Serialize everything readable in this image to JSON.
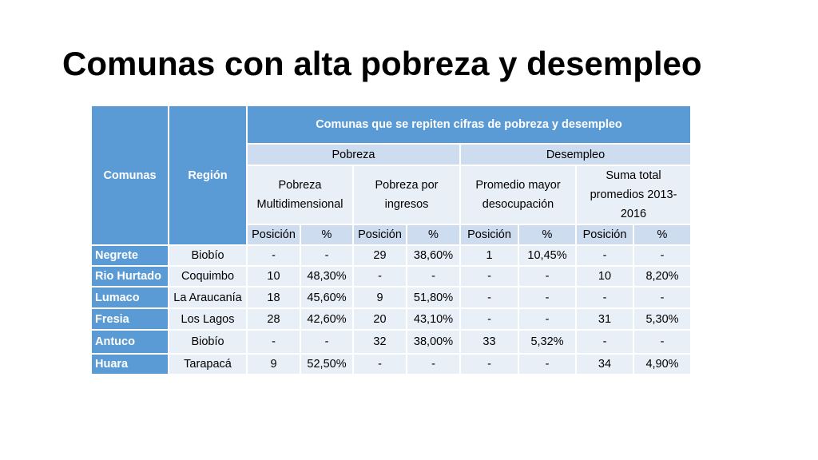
{
  "slide": {
    "title": "Comunas con alta pobreza y desempleo"
  },
  "table": {
    "col_comunas": "Comunas",
    "col_region": "Región",
    "group_title": "Comunas que se repiten cifras de pobreza y desempleo",
    "pobreza": "Pobreza",
    "desempleo": "Desempleo",
    "sub_pm": "Pobreza Multidimensional",
    "sub_pi": "Pobreza por ingresos",
    "sub_pmd": "Promedio mayor desocupación",
    "sub_stp": "Suma total promedios 2013-2016",
    "posicion": "Posición",
    "pct": "%",
    "rows": [
      {
        "comuna": "Negrete",
        "region": "Biobío",
        "pm_pos": "-",
        "pm_pct": "-",
        "pi_pos": "29",
        "pi_pct": "38,60%",
        "pmd_pos": "1",
        "pmd_pct": "10,45%",
        "stp_pos": "-",
        "stp_pct": "-"
      },
      {
        "comuna": "Rio Hurtado",
        "region": "Coquimbo",
        "pm_pos": "10",
        "pm_pct": "48,30%",
        "pi_pos": "-",
        "pi_pct": "-",
        "pmd_pos": "-",
        "pmd_pct": "-",
        "stp_pos": "10",
        "stp_pct": "8,20%"
      },
      {
        "comuna": "Lumaco",
        "region": "La Araucanía",
        "pm_pos": "18",
        "pm_pct": "45,60%",
        "pi_pos": "9",
        "pi_pct": "51,80%",
        "pmd_pos": "-",
        "pmd_pct": "-",
        "stp_pos": "-",
        "stp_pct": "-"
      },
      {
        "comuna": "Fresia",
        "region": "Los Lagos",
        "pm_pos": "28",
        "pm_pct": "42,60%",
        "pi_pos": "20",
        "pi_pct": "43,10%",
        "pmd_pos": "-",
        "pmd_pct": "-",
        "stp_pos": "31",
        "stp_pct": "5,30%"
      },
      {
        "comuna": "Antuco",
        "region": "Biobío",
        "pm_pos": "-",
        "pm_pct": "-",
        "pi_pos": "32",
        "pi_pct": "38,00%",
        "pmd_pos": "33",
        "pmd_pct": "5,32%",
        "stp_pos": "-",
        "stp_pct": "-"
      },
      {
        "comuna": "Huara",
        "region": "Tarapacá",
        "pm_pos": "9",
        "pm_pct": "52,50%",
        "pi_pos": "-",
        "pi_pct": "-",
        "pmd_pos": "-",
        "pmd_pct": "-",
        "stp_pos": "34",
        "stp_pct": "4,90%"
      }
    ]
  },
  "colors": {
    "header": "#5b9bd5",
    "subheader": "#cddcef",
    "cell": "#e9eff7"
  }
}
